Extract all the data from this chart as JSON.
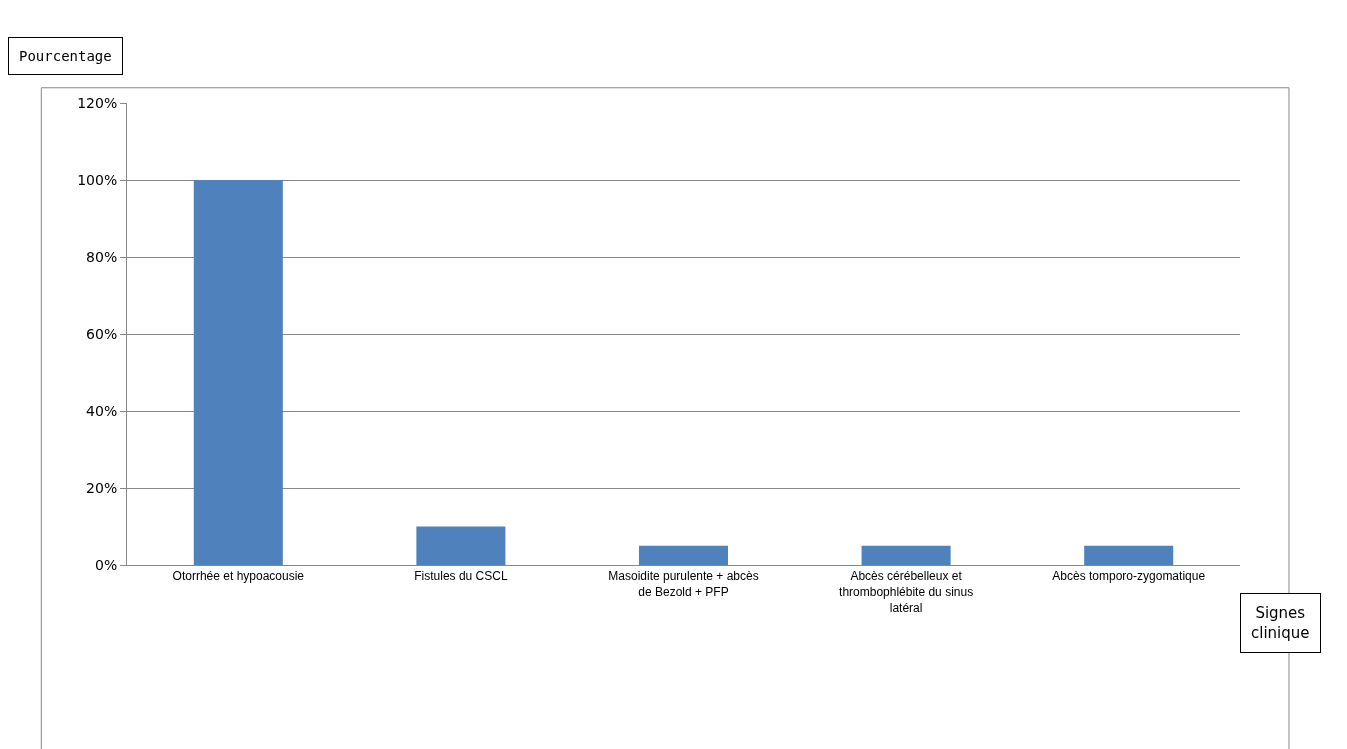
{
  "chart_data": {
    "type": "bar",
    "ylabel": "Pourcentage",
    "xlabel": "Signes clinique",
    "categories": [
      "Otorrhée et hypoacousie",
      "Fistules du CSCL",
      "Masoidite purulente + abcès de Bezold + PFP",
      "Abcès cérébelleux et thrombophlébite du sinus latéral",
      "Abcès tomporo-zygomatique"
    ],
    "values": [
      100,
      10,
      5,
      5,
      5
    ],
    "color": "#4f81bd",
    "ylim": [
      0,
      120
    ],
    "yticks": [
      {
        "value": 0,
        "label": "0%"
      },
      {
        "value": 20,
        "label": "20%"
      },
      {
        "value": 40,
        "label": "40%"
      },
      {
        "value": 60,
        "label": "60%"
      },
      {
        "value": 80,
        "label": "80%"
      },
      {
        "value": 100,
        "label": "100%"
      },
      {
        "value": 120,
        "label": "120%"
      }
    ],
    "grid": "y"
  }
}
